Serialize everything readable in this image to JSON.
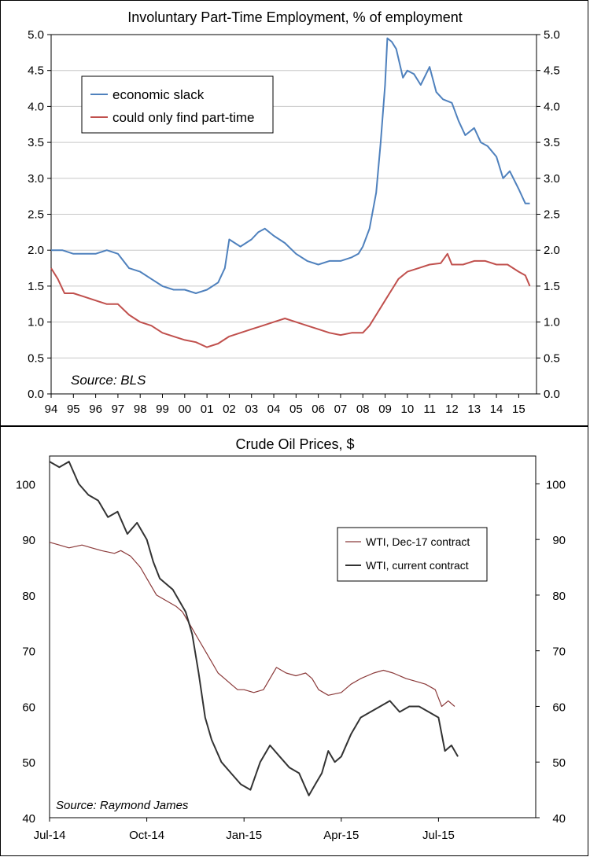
{
  "chart_data": [
    {
      "type": "line",
      "title": "Involuntary Part-Time Employment, % of employment",
      "source": "Source: BLS",
      "xlabel": "",
      "ylabel": "",
      "ylim": [
        0,
        5
      ],
      "xlim": [
        1994.0,
        2015.8
      ],
      "y_ticks": [
        "0.0",
        "0.5",
        "1.0",
        "1.5",
        "2.0",
        "2.5",
        "3.0",
        "3.5",
        "4.0",
        "4.5",
        "5.0"
      ],
      "x_ticks": [
        "94",
        "95",
        "96",
        "97",
        "98",
        "99",
        "00",
        "01",
        "02",
        "03",
        "04",
        "05",
        "06",
        "07",
        "08",
        "09",
        "10",
        "11",
        "12",
        "13",
        "14",
        "15"
      ],
      "legend_position": "top-left",
      "grid": true,
      "series": [
        {
          "name": "economic slack",
          "color": "#4f81bd",
          "x": [
            1994.0,
            1994.5,
            1995.0,
            1995.5,
            1996.0,
            1996.5,
            1997.0,
            1997.5,
            1998.0,
            1998.5,
            1999.0,
            1999.5,
            2000.0,
            2000.5,
            2001.0,
            2001.5,
            2001.8,
            2002.0,
            2002.5,
            2003.0,
            2003.3,
            2003.6,
            2004.0,
            2004.5,
            2005.0,
            2005.5,
            2006.0,
            2006.5,
            2007.0,
            2007.5,
            2007.8,
            2008.0,
            2008.3,
            2008.6,
            2008.8,
            2009.0,
            2009.1,
            2009.3,
            2009.5,
            2009.8,
            2010.0,
            2010.3,
            2010.6,
            2011.0,
            2011.3,
            2011.6,
            2012.0,
            2012.3,
            2012.6,
            2013.0,
            2013.3,
            2013.6,
            2014.0,
            2014.3,
            2014.6,
            2015.0,
            2015.3,
            2015.5
          ],
          "values": [
            2.0,
            2.0,
            1.95,
            1.95,
            1.95,
            2.0,
            1.95,
            1.75,
            1.7,
            1.6,
            1.5,
            1.45,
            1.45,
            1.4,
            1.45,
            1.55,
            1.75,
            2.15,
            2.05,
            2.15,
            2.25,
            2.3,
            2.2,
            2.1,
            1.95,
            1.85,
            1.8,
            1.85,
            1.85,
            1.9,
            1.95,
            2.05,
            2.3,
            2.8,
            3.5,
            4.3,
            4.95,
            4.9,
            4.8,
            4.4,
            4.5,
            4.45,
            4.3,
            4.55,
            4.2,
            4.1,
            4.05,
            3.8,
            3.6,
            3.7,
            3.5,
            3.45,
            3.3,
            3.0,
            3.1,
            2.85,
            2.65,
            2.65
          ]
        },
        {
          "name": "could only find part-time",
          "color": "#c0504d",
          "x": [
            1994.0,
            1994.3,
            1994.6,
            1995.0,
            1995.5,
            1996.0,
            1996.5,
            1997.0,
            1997.5,
            1998.0,
            1998.5,
            1999.0,
            1999.5,
            2000.0,
            2000.5,
            2001.0,
            2001.5,
            2002.0,
            2002.5,
            2003.0,
            2003.5,
            2004.0,
            2004.5,
            2005.0,
            2005.5,
            2006.0,
            2006.5,
            2007.0,
            2007.5,
            2008.0,
            2008.3,
            2008.6,
            2009.0,
            2009.3,
            2009.6,
            2010.0,
            2010.5,
            2011.0,
            2011.5,
            2011.8,
            2012.0,
            2012.5,
            2013.0,
            2013.5,
            2014.0,
            2014.5,
            2015.0,
            2015.3,
            2015.5
          ],
          "values": [
            1.75,
            1.6,
            1.4,
            1.4,
            1.35,
            1.3,
            1.25,
            1.25,
            1.1,
            1.0,
            0.95,
            0.85,
            0.8,
            0.75,
            0.72,
            0.65,
            0.7,
            0.8,
            0.85,
            0.9,
            0.95,
            1.0,
            1.05,
            1.0,
            0.95,
            0.9,
            0.85,
            0.82,
            0.85,
            0.85,
            0.95,
            1.1,
            1.3,
            1.45,
            1.6,
            1.7,
            1.75,
            1.8,
            1.82,
            1.95,
            1.8,
            1.8,
            1.85,
            1.85,
            1.8,
            1.8,
            1.7,
            1.65,
            1.5
          ]
        }
      ]
    },
    {
      "type": "line",
      "title": "Crude Oil Prices, $",
      "source": "Source: Raymond James",
      "xlabel": "",
      "ylabel": "",
      "ylim": [
        40,
        105
      ],
      "y_ticks": [
        "40",
        "50",
        "60",
        "70",
        "80",
        "90",
        "100"
      ],
      "x_ticks": [
        "Jul-14",
        "Oct-14",
        "Jan-15",
        "Apr-15",
        "Jul-15"
      ],
      "x_tick_positions": [
        0,
        3,
        6,
        9,
        12
      ],
      "xlim": [
        0,
        15
      ],
      "legend_position": "top-right",
      "grid": false,
      "series": [
        {
          "name": "WTI, Dec-17 contract",
          "color": "#8b3a3a",
          "x": [
            0,
            0.3,
            0.6,
            1.0,
            1.3,
            1.6,
            2.0,
            2.2,
            2.5,
            2.8,
            3.0,
            3.3,
            3.6,
            3.9,
            4.1,
            4.3,
            4.6,
            5.0,
            5.2,
            5.4,
            5.6,
            5.8,
            6.0,
            6.3,
            6.6,
            7.0,
            7.3,
            7.6,
            7.9,
            8.1,
            8.3,
            8.6,
            9.0,
            9.3,
            9.6,
            10.0,
            10.3,
            10.6,
            11.0,
            11.3,
            11.6,
            11.9,
            12.1,
            12.3,
            12.5
          ],
          "values": [
            89.5,
            89.0,
            88.5,
            89.0,
            88.5,
            88.0,
            87.5,
            88.0,
            87.0,
            85.0,
            83.0,
            80.0,
            79.0,
            78.0,
            77.0,
            75.0,
            72.0,
            68.0,
            66.0,
            65.0,
            64.0,
            63.0,
            63.0,
            62.5,
            63.0,
            67.0,
            66.0,
            65.5,
            66.0,
            65.0,
            63.0,
            62.0,
            62.5,
            64.0,
            65.0,
            66.0,
            66.5,
            66.0,
            65.0,
            64.5,
            64.0,
            63.0,
            60.0,
            61.0,
            60.0
          ]
        },
        {
          "name": "WTI, current contract",
          "color": "#333333",
          "x": [
            0,
            0.3,
            0.6,
            0.9,
            1.2,
            1.5,
            1.8,
            2.1,
            2.4,
            2.7,
            3.0,
            3.2,
            3.4,
            3.6,
            3.8,
            4.0,
            4.2,
            4.4,
            4.6,
            4.8,
            5.0,
            5.3,
            5.6,
            5.9,
            6.2,
            6.5,
            6.8,
            7.1,
            7.4,
            7.7,
            8.0,
            8.2,
            8.4,
            8.6,
            8.8,
            9.0,
            9.3,
            9.6,
            9.9,
            10.2,
            10.5,
            10.8,
            11.1,
            11.4,
            11.7,
            12.0,
            12.2,
            12.4,
            12.6
          ],
          "values": [
            104.0,
            103.0,
            104.0,
            100.0,
            98.0,
            97.0,
            94.0,
            95.0,
            91.0,
            93.0,
            90.0,
            86.0,
            83.0,
            82.0,
            81.0,
            79.0,
            77.0,
            73.0,
            66.0,
            58.0,
            54.0,
            50.0,
            48.0,
            46.0,
            45.0,
            50.0,
            53.0,
            51.0,
            49.0,
            48.0,
            44.0,
            46.0,
            48.0,
            52.0,
            50.0,
            51.0,
            55.0,
            58.0,
            59.0,
            60.0,
            61.0,
            59.0,
            60.0,
            60.0,
            59.0,
            58.0,
            52.0,
            53.0,
            51.0
          ]
        }
      ]
    }
  ]
}
